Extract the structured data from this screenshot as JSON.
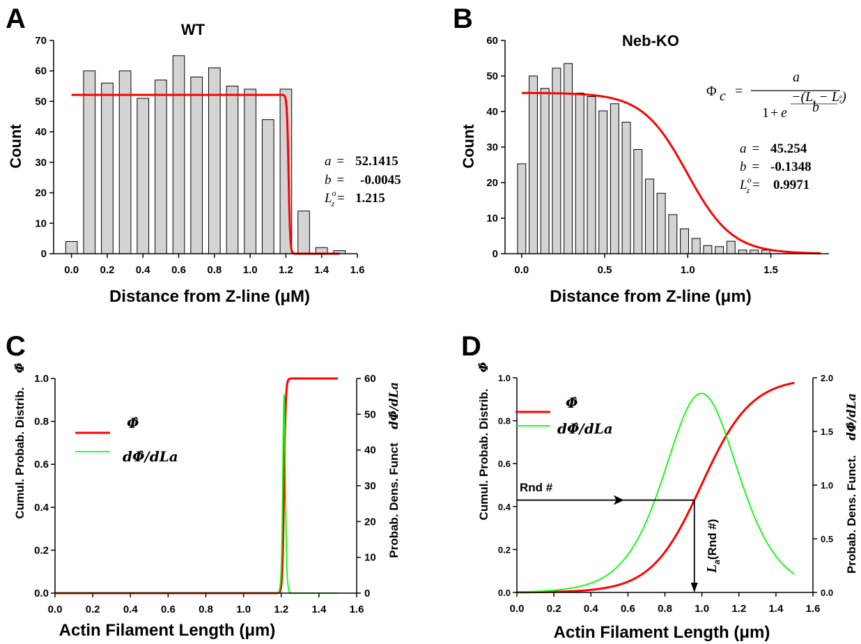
{
  "panels": {
    "A": {
      "letter": "A"
    },
    "B": {
      "letter": "B"
    },
    "C": {
      "letter": "C"
    },
    "D": {
      "letter": "D"
    }
  },
  "chart_data": [
    {
      "panel": "A",
      "type": "bar",
      "title": "WT",
      "xlabel": "Distance from Z-line (μM)",
      "ylabel": "Count",
      "xlim": [
        -0.1,
        1.6
      ],
      "ylim": [
        0,
        70
      ],
      "xticks": [
        0.0,
        0.2,
        0.4,
        0.6,
        0.8,
        1.0,
        1.2,
        1.4,
        1.6
      ],
      "xtick_labels": [
        "0.0",
        "0.2",
        "0.4",
        "0.6",
        "0.8",
        "1.0",
        "1.2",
        "1.4",
        "1.6"
      ],
      "yticks": [
        0,
        10,
        20,
        30,
        40,
        50,
        60,
        70
      ],
      "ytick_labels": [
        "0",
        "10",
        "20",
        "30",
        "40",
        "50",
        "60",
        "70"
      ],
      "bar_width": 0.065,
      "x": [
        0.0,
        0.1,
        0.2,
        0.3,
        0.4,
        0.5,
        0.6,
        0.7,
        0.8,
        0.9,
        1.0,
        1.1,
        1.2,
        1.3,
        1.4,
        1.5
      ],
      "values": [
        4,
        60,
        56,
        60,
        51,
        57,
        65,
        58,
        61,
        55,
        54,
        44,
        54,
        14,
        2,
        1
      ],
      "fit": {
        "a": 52.1415,
        "b": -0.0045,
        "Lz0": 1.215,
        "x_range": [
          0.0,
          1.5
        ]
      },
      "params": {
        "a_label": "a",
        "a_value": "52.1415",
        "b_label": "b",
        "b_value": "-0.0045",
        "L_value": "1.215",
        "eq": "="
      },
      "bar_color": "#d3d3d3",
      "fit_color": "#ff0000"
    },
    {
      "panel": "B",
      "type": "bar",
      "title": "Neb-KO",
      "xlabel": "Distance from Z-line (μm)",
      "ylabel": "Count",
      "xlim": [
        -0.1,
        1.85
      ],
      "ylim": [
        0,
        60
      ],
      "xticks": [
        0.0,
        0.5,
        1.0,
        1.5
      ],
      "xtick_labels": [
        "0.0",
        "0.5",
        "1.0",
        "1.5"
      ],
      "yticks": [
        0,
        10,
        20,
        30,
        40,
        50,
        60
      ],
      "ytick_labels": [
        "0",
        "10",
        "20",
        "30",
        "40",
        "50",
        "60"
      ],
      "bar_width": 0.05,
      "x": [
        0.0,
        0.07,
        0.14,
        0.21,
        0.28,
        0.35,
        0.42,
        0.49,
        0.56,
        0.63,
        0.7,
        0.77,
        0.84,
        0.91,
        0.98,
        1.05,
        1.12,
        1.19,
        1.26,
        1.33,
        1.4,
        1.47,
        1.54,
        1.61,
        1.68,
        1.75
      ],
      "values": [
        25.3,
        50,
        46.5,
        52.2,
        53.5,
        45.2,
        44.2,
        40.2,
        42.2,
        37,
        29.3,
        21,
        17,
        11,
        7,
        4.3,
        2.3,
        2,
        3.5,
        1,
        1,
        1,
        0,
        0,
        0,
        0
      ],
      "fit": {
        "a": 45.254,
        "b": -0.1348,
        "Lz0": 0.9971,
        "x_range": [
          0.0,
          1.8
        ]
      },
      "params": {
        "a_label": "a",
        "a_value": "45.254",
        "b_label": "b",
        "b_value": "-0.1348",
        "L_value": "0.9971",
        "eq": "="
      },
      "formula": {
        "lhs": "Φ",
        "lhs_sub": "c",
        "eq": "=",
        "numerator": "a",
        "denom_one": "1",
        "denom_plus": "+",
        "denom_e": "e",
        "exponent_top": "−(L  − L  )",
        "exponent_bottom": "b"
      },
      "bar_color": "#d3d3d3",
      "fit_color": "#ff0000"
    },
    {
      "panel": "C",
      "type": "line",
      "xlabel": "Actin Filament Length (μm)",
      "ylabel_left": "Cumul. Probab. Distrib.",
      "ylabel_left_symbol": "Φ̂",
      "ylabel_right": "Probab. Dens. Funct",
      "ylabel_right_symbol": "dΦ̂/dLa",
      "xlim": [
        0.0,
        1.6
      ],
      "ylim_left": [
        0.0,
        1.0
      ],
      "ylim_right": [
        0,
        60
      ],
      "xticks": [
        0.0,
        0.2,
        0.4,
        0.6,
        0.8,
        1.0,
        1.2,
        1.4,
        1.6
      ],
      "xtick_labels": [
        "0.0",
        "0.2",
        "0.4",
        "0.6",
        "0.8",
        "1.0",
        "1.2",
        "1.4",
        "1.6"
      ],
      "yticks_left": [
        0.0,
        0.2,
        0.4,
        0.6,
        0.8,
        1.0
      ],
      "ytick_labels_left": [
        "0.0",
        "0.2",
        "0.4",
        "0.6",
        "0.8",
        "1.0"
      ],
      "yticks_right": [
        0,
        10,
        20,
        30,
        40,
        50,
        60
      ],
      "ytick_labels_right": [
        "0",
        "10",
        "20",
        "30",
        "40",
        "50",
        "60"
      ],
      "legend": [
        {
          "label": "Φ̂",
          "color": "#ff0000"
        },
        {
          "label": "dΦ̂/dLa",
          "color": "#00ff00"
        }
      ],
      "series_model": {
        "Lz0": 1.215,
        "b": 0.0045,
        "x_range": [
          0.0,
          1.5
        ]
      }
    },
    {
      "panel": "D",
      "type": "line",
      "xlabel": "Actin Filament Length (μm)",
      "ylabel_left": "Cumul. Probab. Distrib.",
      "ylabel_left_symbol": "Φ̂",
      "ylabel_right": "Probab. Dens. Funct.",
      "ylabel_right_symbol": "dΦ̂/dLa",
      "xlim": [
        0.0,
        1.6
      ],
      "ylim_left": [
        0.0,
        1.0
      ],
      "ylim_right": [
        0.0,
        2.0
      ],
      "xticks": [
        0.0,
        0.2,
        0.4,
        0.6,
        0.8,
        1.0,
        1.2,
        1.4,
        1.6
      ],
      "xtick_labels": [
        "0.0",
        "0.2",
        "0.4",
        "0.6",
        "0.8",
        "1.0",
        "1.2",
        "1.4",
        "1.6"
      ],
      "yticks_left": [
        0.0,
        0.2,
        0.4,
        0.6,
        0.8,
        1.0
      ],
      "ytick_labels_left": [
        "0.0",
        "0.2",
        "0.4",
        "0.6",
        "0.8",
        "1.0"
      ],
      "yticks_right": [
        0.0,
        0.5,
        1.0,
        1.5,
        2.0
      ],
      "ytick_labels_right": [
        "0.0",
        "0.5",
        "1.0",
        "1.5",
        "2.0"
      ],
      "legend": [
        {
          "label": "Φ̂",
          "color": "#ff0000"
        },
        {
          "label": "dΦ̂/dLa",
          "color": "#00ff00"
        }
      ],
      "series_model": {
        "Lz0": 0.9971,
        "b": 0.1348,
        "x_range": [
          0.0,
          1.5
        ]
      },
      "annotation": {
        "rnd_label": "Rnd #",
        "rnd_value": 0.43,
        "la_label": "L",
        "la_sub": "a",
        "la_rest": "(Rnd #)"
      }
    }
  ]
}
